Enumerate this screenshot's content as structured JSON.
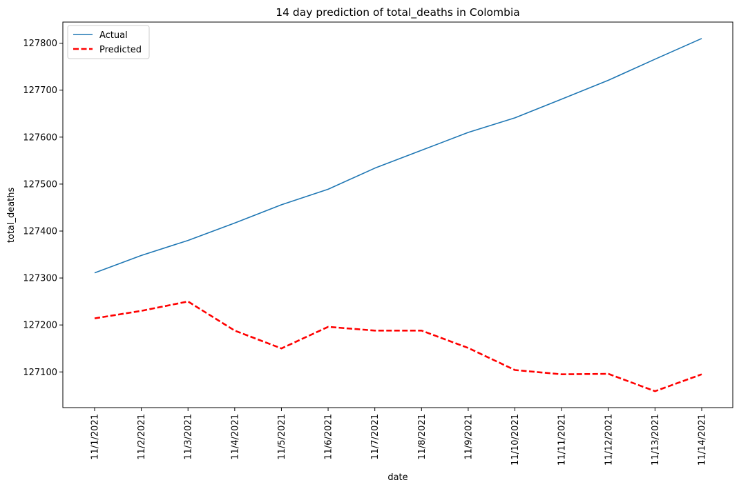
{
  "chart_data": {
    "type": "line",
    "title": "14 day prediction of total_deaths in Colombia",
    "xlabel": "date",
    "ylabel": "total_deaths",
    "categories": [
      "11/1/2021",
      "11/2/2021",
      "11/3/2021",
      "11/4/2021",
      "11/5/2021",
      "11/6/2021",
      "11/7/2021",
      "11/8/2021",
      "11/9/2021",
      "11/10/2021",
      "11/11/2021",
      "11/12/2021",
      "11/13/2021",
      "11/14/2021"
    ],
    "yticks": [
      127100,
      127200,
      127300,
      127400,
      127500,
      127600,
      127700,
      127800
    ],
    "ylim": [
      127024,
      127845
    ],
    "grid": false,
    "legend": "top-left",
    "series": [
      {
        "name": "Actual",
        "color": "#1f77b4",
        "style": "solid",
        "values": [
          127311,
          127348,
          127380,
          127417,
          127456,
          127489,
          127534,
          127572,
          127610,
          127641,
          127681,
          127721,
          127766,
          127810
        ]
      },
      {
        "name": "Predicted",
        "color": "#ff0000",
        "style": "dashed",
        "values": [
          127214,
          127230,
          127250,
          127188,
          127150,
          127196,
          127188,
          127188,
          127151,
          127104,
          127095,
          127096,
          127059,
          127095
        ]
      }
    ]
  }
}
